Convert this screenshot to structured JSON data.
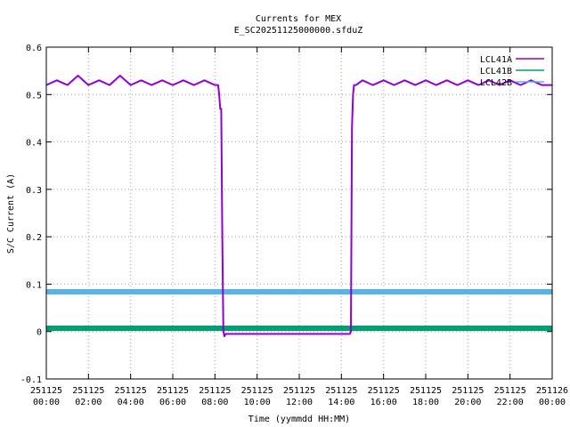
{
  "chart_data": {
    "type": "line",
    "title": "Currents for MEX",
    "subtitle": "E_SC20251125000000.sfduZ",
    "xlabel": "Time (yymmdd HH:MM)",
    "ylabel": "S/C Current (A)",
    "xlim": [
      0,
      24
    ],
    "ylim": [
      -0.1,
      0.6
    ],
    "grid": true,
    "legend_position": "top-right",
    "x_ticks": [
      {
        "v": 0,
        "l1": "251125",
        "l2": "00:00"
      },
      {
        "v": 2,
        "l1": "251125",
        "l2": "02:00"
      },
      {
        "v": 4,
        "l1": "251125",
        "l2": "04:00"
      },
      {
        "v": 6,
        "l1": "251125",
        "l2": "06:00"
      },
      {
        "v": 8,
        "l1": "251125",
        "l2": "08:00"
      },
      {
        "v": 10,
        "l1": "251125",
        "l2": "10:00"
      },
      {
        "v": 12,
        "l1": "251125",
        "l2": "12:00"
      },
      {
        "v": 14,
        "l1": "251125",
        "l2": "14:00"
      },
      {
        "v": 16,
        "l1": "251125",
        "l2": "16:00"
      },
      {
        "v": 18,
        "l1": "251125",
        "l2": "18:00"
      },
      {
        "v": 20,
        "l1": "251125",
        "l2": "20:00"
      },
      {
        "v": 22,
        "l1": "251125",
        "l2": "22:00"
      },
      {
        "v": 24,
        "l1": "251126",
        "l2": "00:00"
      }
    ],
    "y_ticks": [
      {
        "v": -0.1,
        "label": "-0.1"
      },
      {
        "v": 0,
        "label": "0"
      },
      {
        "v": 0.1,
        "label": "0.1"
      },
      {
        "v": 0.2,
        "label": "0.2"
      },
      {
        "v": 0.3,
        "label": "0.3"
      },
      {
        "v": 0.4,
        "label": "0.4"
      },
      {
        "v": 0.5,
        "label": "0.5"
      },
      {
        "v": 0.6,
        "label": "0.6"
      }
    ],
    "series": [
      {
        "name": "LCL41A",
        "color": "#9400d3",
        "x": [
          0,
          0.5,
          1,
          1.5,
          2,
          2.5,
          3,
          3.5,
          4,
          4.5,
          5,
          5.5,
          6,
          6.5,
          7,
          7.5,
          8,
          8.15,
          8.2,
          8.25,
          8.3,
          8.35,
          8.4,
          8.45,
          8.5,
          9,
          10,
          11,
          12,
          13,
          14,
          14.4,
          14.45,
          14.5,
          14.55,
          14.6,
          14.7,
          15,
          15.5,
          16,
          16.5,
          17,
          17.5,
          18,
          18.5,
          19,
          19.5,
          20,
          20.5,
          21,
          21.5,
          22,
          22.5,
          23,
          23.5,
          24
        ],
        "y": [
          0.52,
          0.53,
          0.52,
          0.54,
          0.52,
          0.53,
          0.52,
          0.54,
          0.52,
          0.53,
          0.52,
          0.53,
          0.52,
          0.53,
          0.52,
          0.53,
          0.52,
          0.52,
          0.5,
          0.47,
          0.47,
          0.2,
          0.0,
          -0.01,
          -0.005,
          -0.005,
          -0.005,
          -0.005,
          -0.005,
          -0.005,
          -0.005,
          -0.005,
          0.0,
          0.43,
          0.5,
          0.52,
          0.52,
          0.53,
          0.52,
          0.53,
          0.52,
          0.53,
          0.52,
          0.53,
          0.52,
          0.53,
          0.52,
          0.53,
          0.52,
          0.53,
          0.52,
          0.53,
          0.52,
          0.53,
          0.52,
          0.52
        ]
      },
      {
        "name": "LCL41B",
        "color": "#009e73",
        "x": [
          0,
          24
        ],
        "y": [
          0.007,
          0.007
        ]
      },
      {
        "name": "LCL42B",
        "color": "#56b4e9",
        "x": [
          0,
          24
        ],
        "y": [
          0.084,
          0.084
        ]
      }
    ]
  }
}
